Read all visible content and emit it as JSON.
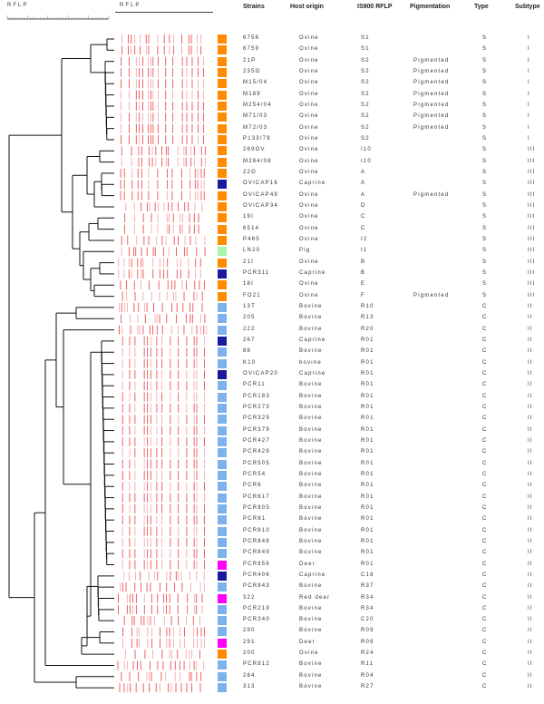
{
  "scale_label": "RFLP",
  "bands_label": "RFLP",
  "headers": {
    "strains": "Strains",
    "host": "Host origin",
    "is900": "IS900 RFLP",
    "pigmentation": "Pigmentation",
    "type": "Type",
    "subtype": "Subtype"
  },
  "host_colors": {
    "Ovine": "#ff8c00",
    "Caprine": "#1a1a9c",
    "Pig": "#aaf5aa",
    "Bovine": "#7eb2ea",
    "Deer": "#ff00ff"
  },
  "rows": [
    {
      "strain": "6756",
      "host": "Ovine",
      "rflp": "S1",
      "pig": "",
      "type": "S",
      "subtype": "I",
      "color": "#ff8c00"
    },
    {
      "strain": "6759",
      "host": "Ovine",
      "rflp": "S1",
      "pig": "",
      "type": "S",
      "subtype": "I",
      "color": "#ff8c00"
    },
    {
      "strain": "21P",
      "host": "Ovine",
      "rflp": "S2",
      "pig": "Pigmented",
      "type": "S",
      "subtype": "I",
      "color": "#ff8c00"
    },
    {
      "strain": "235G",
      "host": "Ovine",
      "rflp": "S2",
      "pig": "Pigmented",
      "type": "S",
      "subtype": "I",
      "color": "#ff8c00"
    },
    {
      "strain": "M15/04",
      "host": "Ovine",
      "rflp": "S2",
      "pig": "Pigmented",
      "type": "S",
      "subtype": "I",
      "color": "#ff8c00"
    },
    {
      "strain": "M189",
      "host": "Ovine",
      "rflp": "S2",
      "pig": "Pigmented",
      "type": "S",
      "subtype": "I",
      "color": "#ff8c00"
    },
    {
      "strain": "M254/04",
      "host": "Ovine",
      "rflp": "S2",
      "pig": "Pigmented",
      "type": "S",
      "subtype": "I",
      "color": "#ff8c00"
    },
    {
      "strain": "M71/03",
      "host": "Ovine",
      "rflp": "S2",
      "pig": "Pigmented",
      "type": "S",
      "subtype": "I",
      "color": "#ff8c00"
    },
    {
      "strain": "M72/03",
      "host": "Ovine",
      "rflp": "S2",
      "pig": "Pigmented",
      "type": "S",
      "subtype": "I",
      "color": "#ff8c00"
    },
    {
      "strain": "P133/79",
      "host": "Ovine",
      "rflp": "S2",
      "pig": "",
      "type": "S",
      "subtype": "I",
      "color": "#ff8c00"
    },
    {
      "strain": "269OV",
      "host": "Ovine",
      "rflp": "I10",
      "pig": "",
      "type": "S",
      "subtype": "III",
      "color": "#ff8c00"
    },
    {
      "strain": "M284/08",
      "host": "Ovine",
      "rflp": "I10",
      "pig": "",
      "type": "S",
      "subtype": "III",
      "color": "#ff8c00"
    },
    {
      "strain": "22G",
      "host": "Ovine",
      "rflp": "A",
      "pig": "",
      "type": "S",
      "subtype": "III",
      "color": "#ff8c00"
    },
    {
      "strain": "OVICAP16",
      "host": "Caprine",
      "rflp": "A",
      "pig": "",
      "type": "S",
      "subtype": "III",
      "color": "#1a1a9c"
    },
    {
      "strain": "OVICAP49",
      "host": "Ovine",
      "rflp": "A",
      "pig": "Pigmented",
      "type": "S",
      "subtype": "III",
      "color": "#ff8c00"
    },
    {
      "strain": "OVICAP34",
      "host": "Ovine",
      "rflp": "D",
      "pig": "",
      "type": "S",
      "subtype": "III",
      "color": "#ff8c00"
    },
    {
      "strain": "19I",
      "host": "Ovine",
      "rflp": "C",
      "pig": "",
      "type": "S",
      "subtype": "III",
      "color": "#ff8c00"
    },
    {
      "strain": "6514",
      "host": "Ovine",
      "rflp": "C",
      "pig": "",
      "type": "S",
      "subtype": "III",
      "color": "#ff8c00"
    },
    {
      "strain": "P465",
      "host": "Ovine",
      "rflp": "I2",
      "pig": "",
      "type": "S",
      "subtype": "III",
      "color": "#ff8c00"
    },
    {
      "strain": "LN20",
      "host": "Pig",
      "rflp": "I1",
      "pig": "",
      "type": "S",
      "subtype": "III",
      "color": "#aaf5aa"
    },
    {
      "strain": "21I",
      "host": "Ovine",
      "rflp": "B",
      "pig": "",
      "type": "S",
      "subtype": "III",
      "color": "#ff8c00"
    },
    {
      "strain": "PCR311",
      "host": "Caprine",
      "rflp": "B",
      "pig": "",
      "type": "S",
      "subtype": "III",
      "color": "#1a1a9c"
    },
    {
      "strain": "18I",
      "host": "Ovine",
      "rflp": "E",
      "pig": "",
      "type": "S",
      "subtype": "III",
      "color": "#ff8c00"
    },
    {
      "strain": "FO21",
      "host": "Ovine",
      "rflp": "F",
      "pig": "Pigmented",
      "type": "S",
      "subtype": "III",
      "color": "#ff8c00"
    },
    {
      "strain": "13T",
      "host": "Bovine",
      "rflp": "R10",
      "pig": "",
      "type": "C",
      "subtype": "II",
      "color": "#7eb2ea"
    },
    {
      "strain": "205",
      "host": "Bovine",
      "rflp": "R13",
      "pig": "",
      "type": "C",
      "subtype": "II",
      "color": "#7eb2ea"
    },
    {
      "strain": "222",
      "host": "Bovine",
      "rflp": "R20",
      "pig": "",
      "type": "C",
      "subtype": "II",
      "color": "#7eb2ea"
    },
    {
      "strain": "267",
      "host": "Caprine",
      "rflp": "R01",
      "pig": "",
      "type": "C",
      "subtype": "II",
      "color": "#1a1a9c"
    },
    {
      "strain": "88",
      "host": "Bovine",
      "rflp": "R01",
      "pig": "",
      "type": "C",
      "subtype": "II",
      "color": "#7eb2ea"
    },
    {
      "strain": "K10",
      "host": "bovine",
      "rflp": "R01",
      "pig": "",
      "type": "C",
      "subtype": "II",
      "color": "#7eb2ea"
    },
    {
      "strain": "OVICAP20",
      "host": "Caprine",
      "rflp": "R01",
      "pig": "",
      "type": "C",
      "subtype": "II",
      "color": "#1a1a9c"
    },
    {
      "strain": "PCR11",
      "host": "Bovine",
      "rflp": "R01",
      "pig": "",
      "type": "C",
      "subtype": "II",
      "color": "#7eb2ea"
    },
    {
      "strain": "PCR183",
      "host": "Bovine",
      "rflp": "R01",
      "pig": "",
      "type": "C",
      "subtype": "II",
      "color": "#7eb2ea"
    },
    {
      "strain": "PCR273",
      "host": "Bovine",
      "rflp": "R01",
      "pig": "",
      "type": "C",
      "subtype": "II",
      "color": "#7eb2ea"
    },
    {
      "strain": "PCR329",
      "host": "Bovine",
      "rflp": "R01",
      "pig": "",
      "type": "C",
      "subtype": "II",
      "color": "#7eb2ea"
    },
    {
      "strain": "PCR379",
      "host": "Bovine",
      "rflp": "R01",
      "pig": "",
      "type": "C",
      "subtype": "II",
      "color": "#7eb2ea"
    },
    {
      "strain": "PCR427",
      "host": "Bovine",
      "rflp": "R01",
      "pig": "",
      "type": "C",
      "subtype": "II",
      "color": "#7eb2ea"
    },
    {
      "strain": "PCR429",
      "host": "Bovine",
      "rflp": "R01",
      "pig": "",
      "type": "C",
      "subtype": "II",
      "color": "#7eb2ea"
    },
    {
      "strain": "PCR505",
      "host": "Bovine",
      "rflp": "R01",
      "pig": "",
      "type": "C",
      "subtype": "II",
      "color": "#7eb2ea"
    },
    {
      "strain": "PCR54",
      "host": "Bovine",
      "rflp": "R01",
      "pig": "",
      "type": "C",
      "subtype": "II",
      "color": "#7eb2ea"
    },
    {
      "strain": "PCR6",
      "host": "Bovine",
      "rflp": "R01",
      "pig": "",
      "type": "C",
      "subtype": "II",
      "color": "#7eb2ea"
    },
    {
      "strain": "PCR617",
      "host": "Bovine",
      "rflp": "R01",
      "pig": "",
      "type": "C",
      "subtype": "II",
      "color": "#7eb2ea"
    },
    {
      "strain": "PCR805",
      "host": "Bovine",
      "rflp": "R01",
      "pig": "",
      "type": "C",
      "subtype": "II",
      "color": "#7eb2ea"
    },
    {
      "strain": "PCR81",
      "host": "Bovine",
      "rflp": "R01",
      "pig": "",
      "type": "C",
      "subtype": "II",
      "color": "#7eb2ea"
    },
    {
      "strain": "PCR810",
      "host": "Bovine",
      "rflp": "R01",
      "pig": "",
      "type": "C",
      "subtype": "II",
      "color": "#7eb2ea"
    },
    {
      "strain": "PCR848",
      "host": "Bovine",
      "rflp": "R01",
      "pig": "",
      "type": "C",
      "subtype": "II",
      "color": "#7eb2ea"
    },
    {
      "strain": "PCR849",
      "host": "Bovine",
      "rflp": "R01",
      "pig": "",
      "type": "C",
      "subtype": "II",
      "color": "#7eb2ea"
    },
    {
      "strain": "PCR856",
      "host": "Deer",
      "rflp": "R01",
      "pig": "",
      "type": "C",
      "subtype": "II",
      "color": "#ff00ff"
    },
    {
      "strain": "PCR406",
      "host": "Caprine",
      "rflp": "C18",
      "pig": "",
      "type": "C",
      "subtype": "II",
      "color": "#1a1a9c"
    },
    {
      "strain": "PCR843",
      "host": "Bovine",
      "rflp": "R37",
      "pig": "",
      "type": "C",
      "subtype": "II",
      "color": "#7eb2ea"
    },
    {
      "strain": "322",
      "host": "Red deer",
      "rflp": "R34",
      "pig": "",
      "type": "C",
      "subtype": "II",
      "color": "#ff00ff"
    },
    {
      "strain": "PCR219",
      "host": "Bovine",
      "rflp": "R34",
      "pig": "",
      "type": "C",
      "subtype": "II",
      "color": "#7eb2ea"
    },
    {
      "strain": "PCR340",
      "host": "Bovine",
      "rflp": "C20",
      "pig": "",
      "type": "C",
      "subtype": "II",
      "color": "#7eb2ea"
    },
    {
      "strain": "290",
      "host": "Bovine",
      "rflp": "R09",
      "pig": "",
      "type": "C",
      "subtype": "II",
      "color": "#7eb2ea"
    },
    {
      "strain": "291",
      "host": "Deer",
      "rflp": "R09",
      "pig": "",
      "type": "C",
      "subtype": "II",
      "color": "#ff00ff"
    },
    {
      "strain": "200",
      "host": "Ovine",
      "rflp": "R24",
      "pig": "",
      "type": "C",
      "subtype": "II",
      "color": "#ff8c00"
    },
    {
      "strain": "PCR812",
      "host": "Bovine",
      "rflp": "R11",
      "pig": "",
      "type": "C",
      "subtype": "II",
      "color": "#7eb2ea"
    },
    {
      "strain": "284",
      "host": "Bovine",
      "rflp": "R04",
      "pig": "",
      "type": "C",
      "subtype": "II",
      "color": "#7eb2ea"
    },
    {
      "strain": "313",
      "host": "Bovine",
      "rflp": "R27",
      "pig": "",
      "type": "C",
      "subtype": "II",
      "color": "#7eb2ea"
    }
  ]
}
